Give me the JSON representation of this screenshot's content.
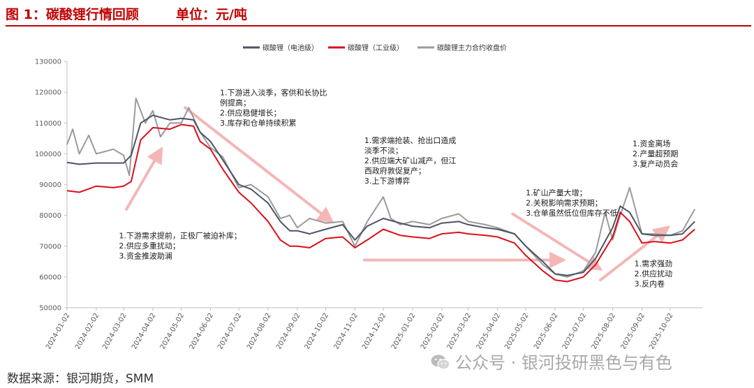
{
  "header": {
    "title": "图 1：碳酸锂行情回顾",
    "unit": "单位：元/吨"
  },
  "footer": {
    "source": "数据来源：银河期货，SMM",
    "watermark": "公众号 · 银河投研黑色与有色"
  },
  "colors": {
    "battery": "#4a5462",
    "industrial": "#d9101a",
    "futures": "#9a9a9a",
    "arrow": "#f4b6b6",
    "accent": "#c00000"
  },
  "chart_data": {
    "type": "line",
    "title": "",
    "xlabel": "",
    "ylabel": "",
    "ylim": [
      50000,
      130000
    ],
    "yticks": [
      "50000",
      "60000",
      "70000",
      "80000",
      "90000",
      "100000",
      "110000",
      "120000",
      "130000"
    ],
    "xticks": [
      "2024-01-02",
      "2024-02-02",
      "2024-03-02",
      "2024-04-02",
      "2024-05-02",
      "2024-06-02",
      "2024-07-02",
      "2024-08-02",
      "2024-09-02",
      "2024-10-02",
      "2024-11-02",
      "2024-12-02",
      "2025-01-02",
      "2025-02-02",
      "2025-03-02",
      "2025-04-02",
      "2025-05-02",
      "2025-06-02",
      "2025-07-02",
      "2025-08-02",
      "2025-09-02",
      "2025-10-02"
    ],
    "legend_position": "top-center",
    "grid": false,
    "series": [
      {
        "name": "碳酸锂（电池级）",
        "points": [
          [
            "2024-01-02",
            97200
          ],
          [
            "2024-01-15",
            96600
          ],
          [
            "2024-02-02",
            97000
          ],
          [
            "2024-02-20",
            97000
          ],
          [
            "2024-03-02",
            97000
          ],
          [
            "2024-03-10",
            99500
          ],
          [
            "2024-03-20",
            110000
          ],
          [
            "2024-04-02",
            112500
          ],
          [
            "2024-04-20",
            111000
          ],
          [
            "2024-05-02",
            111500
          ],
          [
            "2024-05-15",
            111000
          ],
          [
            "2024-05-22",
            107000
          ],
          [
            "2024-06-02",
            104000
          ],
          [
            "2024-06-15",
            98000
          ],
          [
            "2024-07-02",
            90000
          ],
          [
            "2024-07-15",
            88500
          ],
          [
            "2024-08-02",
            84000
          ],
          [
            "2024-08-15",
            78000
          ],
          [
            "2024-08-25",
            75000
          ],
          [
            "2024-09-02",
            75000
          ],
          [
            "2024-09-15",
            74000
          ],
          [
            "2024-10-02",
            75500
          ],
          [
            "2024-10-20",
            77000
          ],
          [
            "2024-11-02",
            72000
          ],
          [
            "2024-11-15",
            76500
          ],
          [
            "2024-12-02",
            79000
          ],
          [
            "2024-12-20",
            77500
          ],
          [
            "2025-01-02",
            76500
          ],
          [
            "2025-01-20",
            76000
          ],
          [
            "2025-02-02",
            77500
          ],
          [
            "2025-02-20",
            78000
          ],
          [
            "2025-03-02",
            77000
          ],
          [
            "2025-03-20",
            76000
          ],
          [
            "2025-04-02",
            75500
          ],
          [
            "2025-04-20",
            74000
          ],
          [
            "2025-05-02",
            70000
          ],
          [
            "2025-05-20",
            65000
          ],
          [
            "2025-06-02",
            61000
          ],
          [
            "2025-06-15",
            60500
          ],
          [
            "2025-07-02",
            61500
          ],
          [
            "2025-07-15",
            66000
          ],
          [
            "2025-08-02",
            76000
          ],
          [
            "2025-08-10",
            83000
          ],
          [
            "2025-08-20",
            81000
          ],
          [
            "2025-09-02",
            74000
          ],
          [
            "2025-09-15",
            73500
          ],
          [
            "2025-10-02",
            73500
          ],
          [
            "2025-10-15",
            74000
          ],
          [
            "2025-10-28",
            78000
          ]
        ]
      },
      {
        "name": "碳酸锂（工业级）",
        "points": [
          [
            "2024-01-02",
            88000
          ],
          [
            "2024-01-15",
            87500
          ],
          [
            "2024-02-02",
            89500
          ],
          [
            "2024-02-20",
            89000
          ],
          [
            "2024-03-02",
            89500
          ],
          [
            "2024-03-10",
            91000
          ],
          [
            "2024-03-20",
            104500
          ],
          [
            "2024-04-02",
            108500
          ],
          [
            "2024-04-20",
            108000
          ],
          [
            "2024-05-02",
            109500
          ],
          [
            "2024-05-15",
            109000
          ],
          [
            "2024-05-22",
            104000
          ],
          [
            "2024-06-02",
            101500
          ],
          [
            "2024-06-15",
            95000
          ],
          [
            "2024-07-02",
            87500
          ],
          [
            "2024-07-15",
            84000
          ],
          [
            "2024-08-02",
            78000
          ],
          [
            "2024-08-15",
            72000
          ],
          [
            "2024-08-25",
            70000
          ],
          [
            "2024-09-02",
            70000
          ],
          [
            "2024-09-15",
            69500
          ],
          [
            "2024-10-02",
            72500
          ],
          [
            "2024-10-20",
            73000
          ],
          [
            "2024-11-02",
            69500
          ],
          [
            "2024-11-15",
            72000
          ],
          [
            "2024-12-02",
            75500
          ],
          [
            "2024-12-20",
            73500
          ],
          [
            "2025-01-02",
            73000
          ],
          [
            "2025-01-20",
            72500
          ],
          [
            "2025-02-02",
            74000
          ],
          [
            "2025-02-20",
            74500
          ],
          [
            "2025-03-02",
            74000
          ],
          [
            "2025-03-20",
            73500
          ],
          [
            "2025-04-02",
            73000
          ],
          [
            "2025-04-20",
            71000
          ],
          [
            "2025-05-02",
            67000
          ],
          [
            "2025-05-20",
            62000
          ],
          [
            "2025-06-02",
            59000
          ],
          [
            "2025-06-15",
            58500
          ],
          [
            "2025-07-02",
            60000
          ],
          [
            "2025-07-15",
            64000
          ],
          [
            "2025-08-02",
            73000
          ],
          [
            "2025-08-10",
            81000
          ],
          [
            "2025-08-20",
            78000
          ],
          [
            "2025-09-02",
            71000
          ],
          [
            "2025-09-15",
            71500
          ],
          [
            "2025-10-02",
            71000
          ],
          [
            "2025-10-15",
            72000
          ],
          [
            "2025-10-28",
            75500
          ]
        ]
      },
      {
        "name": "碳酸锂主力合约收盘价",
        "points": [
          [
            "2024-01-02",
            103000
          ],
          [
            "2024-01-08",
            108000
          ],
          [
            "2024-01-15",
            100000
          ],
          [
            "2024-01-25",
            106000
          ],
          [
            "2024-02-02",
            100000
          ],
          [
            "2024-02-20",
            101500
          ],
          [
            "2024-03-02",
            99500
          ],
          [
            "2024-03-08",
            93000
          ],
          [
            "2024-03-15",
            118000
          ],
          [
            "2024-03-25",
            110000
          ],
          [
            "2024-04-02",
            114000
          ],
          [
            "2024-04-10",
            105500
          ],
          [
            "2024-04-20",
            110000
          ],
          [
            "2024-05-02",
            110000
          ],
          [
            "2024-05-10",
            115000
          ],
          [
            "2024-05-22",
            107000
          ],
          [
            "2024-06-02",
            102000
          ],
          [
            "2024-06-15",
            99000
          ],
          [
            "2024-07-02",
            89000
          ],
          [
            "2024-07-15",
            90000
          ],
          [
            "2024-08-02",
            86000
          ],
          [
            "2024-08-15",
            79000
          ],
          [
            "2024-08-25",
            80000
          ],
          [
            "2024-09-02",
            76000
          ],
          [
            "2024-09-15",
            79000
          ],
          [
            "2024-10-02",
            77500
          ],
          [
            "2024-10-20",
            78000
          ],
          [
            "2024-11-02",
            70000
          ],
          [
            "2024-11-15",
            78000
          ],
          [
            "2024-12-02",
            86000
          ],
          [
            "2024-12-10",
            79000
          ],
          [
            "2024-12-20",
            77000
          ],
          [
            "2025-01-02",
            78000
          ],
          [
            "2025-01-20",
            77000
          ],
          [
            "2025-02-02",
            79000
          ],
          [
            "2025-02-20",
            80500
          ],
          [
            "2025-03-02",
            78000
          ],
          [
            "2025-03-20",
            77000
          ],
          [
            "2025-04-02",
            76000
          ],
          [
            "2025-04-20",
            74000
          ],
          [
            "2025-05-02",
            70000
          ],
          [
            "2025-05-20",
            64000
          ],
          [
            "2025-06-02",
            61000
          ],
          [
            "2025-06-15",
            60000
          ],
          [
            "2025-07-02",
            62000
          ],
          [
            "2025-07-15",
            68000
          ],
          [
            "2025-07-25",
            81000
          ],
          [
            "2025-08-02",
            72000
          ],
          [
            "2025-08-10",
            80000
          ],
          [
            "2025-08-20",
            89000
          ],
          [
            "2025-09-02",
            74000
          ],
          [
            "2025-09-15",
            74000
          ],
          [
            "2025-10-02",
            73500
          ],
          [
            "2025-10-15",
            75000
          ],
          [
            "2025-10-28",
            82000
          ]
        ]
      }
    ],
    "annotations": [
      {
        "date": "2024-02-26",
        "value": 72500,
        "lines": [
          "1.下游需求提前，正极厂被迫补库；",
          "2.供应多重扰动；",
          "3.资金推波助澜"
        ]
      },
      {
        "date": "2024-06-12",
        "value": 119000,
        "lines": [
          "1.下游进入淡季，客供和长协比",
          "例提高；",
          "2.供应稳健增长；",
          "3.库存和仓单持续积累"
        ]
      },
      {
        "date": "2024-11-12",
        "value": 103500,
        "lines": [
          "1.需求端抢装、抢出口造成",
          "淡季不淡；",
          "2.供应端大矿山减产，但江",
          "西政府敦促复产；",
          "3.上下游博弈"
        ]
      },
      {
        "date": "2025-05-02",
        "value": 86500,
        "lines": [
          "1.矿山产量大增；",
          "2.关税影响需求预期；",
          "3.仓单虽然低位但库存不低"
        ]
      },
      {
        "date": "2025-08-23",
        "value": 102500,
        "lines": [
          "1.资金离场",
          "2.产量超预期",
          "3.复产动员会"
        ]
      },
      {
        "date": "2025-08-25",
        "value": 63500,
        "lines": [
          "1.需求强劲",
          "2.供应扰动",
          "3.反内卷"
        ]
      }
    ],
    "arrows": [
      {
        "from": [
          "2024-03-05",
          82000
        ],
        "to": [
          "2024-04-08",
          100000
        ]
      },
      {
        "from": [
          "2024-05-06",
          115000
        ],
        "to": [
          "2024-10-04",
          79000
        ]
      },
      {
        "from": [
          "2024-11-12",
          65500
        ],
        "to": [
          "2025-06-05",
          65500
        ]
      },
      {
        "from": [
          "2025-04-18",
          80500
        ],
        "to": [
          "2025-07-15",
          63500
        ]
      },
      {
        "from": [
          "2025-07-20",
          59000
        ],
        "to": [
          "2025-09-25",
          75000
        ]
      }
    ]
  }
}
